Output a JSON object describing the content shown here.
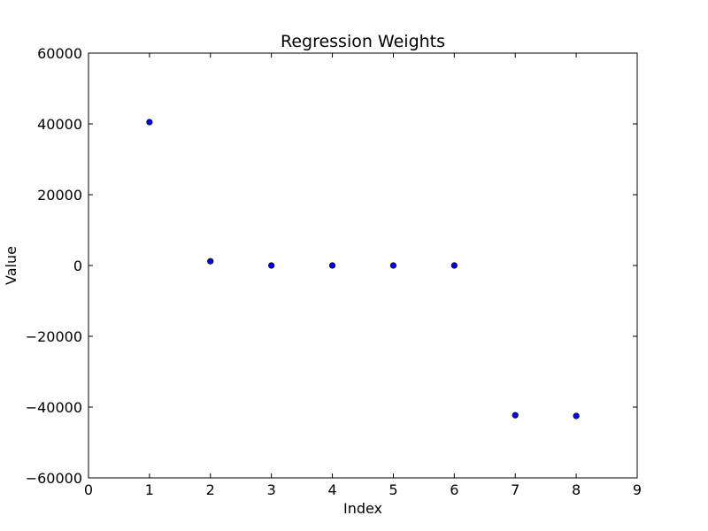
{
  "chart_data": {
    "type": "scatter",
    "title": "Regression Weights",
    "xlabel": "Index",
    "ylabel": "Value",
    "xlim": [
      0,
      9
    ],
    "ylim": [
      -60000,
      60000
    ],
    "xticks": [
      0,
      1,
      2,
      3,
      4,
      5,
      6,
      7,
      8,
      9
    ],
    "yticks": [
      -60000,
      -40000,
      -20000,
      0,
      20000,
      40000,
      60000
    ],
    "ytick_labels": [
      "−60000",
      "−40000",
      "−20000",
      "0",
      "20000",
      "40000",
      "60000"
    ],
    "grid": false,
    "marker_color": "#0000ff",
    "series": [
      {
        "x": [
          1,
          2,
          3,
          4,
          5,
          6,
          7,
          8
        ],
        "y": [
          40500,
          1200,
          0,
          0,
          0,
          0,
          -42300,
          -42500
        ]
      }
    ]
  }
}
